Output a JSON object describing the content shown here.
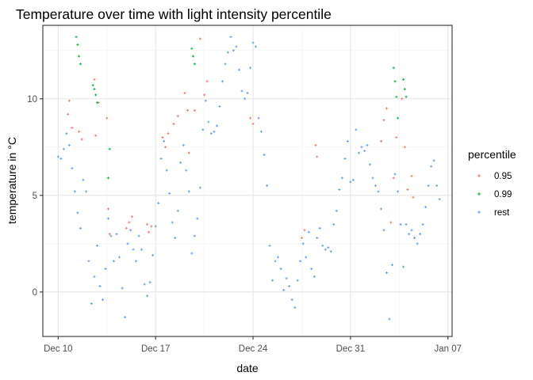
{
  "chart_data": {
    "type": "scatter",
    "title": "Temperature over time with light intensity percentile",
    "xlabel": "date",
    "ylabel": "temperature in °C",
    "x_ticks": [
      "Dec 10",
      "Dec 17",
      "Dec 24",
      "Dec 31",
      "Jan 07"
    ],
    "y_ticks": [
      "0",
      "5",
      "10"
    ],
    "xlim_days": [
      8.9,
      38.3
    ],
    "ylim": [
      -2.3,
      13.8
    ],
    "grid": true,
    "legend": {
      "title": "percentile",
      "position": "right",
      "entries": [
        "0.95",
        "0.99",
        "rest"
      ]
    },
    "colors": {
      "0.95": "#F8766D",
      "0.99": "#00BA38",
      "rest": "#619CFF"
    },
    "series": [
      {
        "name": "rest",
        "x": [
          10.0,
          10.2,
          10.4,
          10.6,
          10.8,
          11.0,
          11.2,
          11.4,
          11.6,
          11.8,
          12.0,
          12.2,
          12.4,
          12.6,
          12.8,
          13.0,
          13.2,
          13.4,
          13.6,
          13.8,
          14.0,
          14.2,
          14.4,
          14.6,
          14.8,
          15.0,
          15.2,
          15.4,
          15.6,
          15.8,
          16.0,
          16.2,
          16.4,
          16.6,
          16.8,
          17.0,
          17.2,
          17.4,
          17.6,
          17.8,
          18.0,
          18.2,
          18.4,
          18.6,
          18.8,
          19.0,
          19.2,
          19.4,
          19.6,
          19.8,
          20.0,
          20.2,
          20.4,
          20.6,
          20.8,
          21.0,
          21.2,
          21.4,
          21.6,
          21.8,
          22.0,
          22.2,
          22.4,
          22.6,
          22.8,
          23.0,
          23.2,
          23.4,
          23.6,
          23.8,
          24.0,
          24.2,
          24.4,
          24.6,
          24.8,
          25.0,
          25.2,
          25.4,
          25.6,
          25.8,
          26.0,
          26.2,
          26.4,
          26.6,
          26.8,
          27.0,
          27.2,
          27.4,
          27.6,
          27.8,
          28.0,
          28.2,
          28.4,
          28.6,
          28.8,
          29.0,
          29.2,
          29.4,
          29.6,
          29.8,
          30.0,
          30.2,
          30.4,
          30.6,
          30.8,
          31.0,
          31.2,
          31.4,
          31.6,
          31.8,
          32.0,
          32.2,
          32.4,
          32.6,
          32.8,
          33.0,
          33.2,
          33.4,
          33.6,
          33.8,
          34.0,
          34.2,
          34.4,
          34.6,
          34.8,
          35.0,
          35.2,
          35.4,
          35.6,
          35.8,
          36.0,
          36.2,
          36.4,
          36.6,
          36.8,
          37.0,
          37.2,
          37.4
        ],
        "y": [
          7.0,
          6.9,
          7.4,
          8.2,
          7.6,
          6.4,
          5.2,
          4.1,
          3.3,
          5.8,
          5.2,
          1.6,
          -0.6,
          0.8,
          2.4,
          0.3,
          -0.4,
          1.2,
          3.8,
          2.9,
          1.6,
          3.0,
          1.8,
          0.2,
          -1.3,
          2.5,
          3.2,
          2.2,
          1.6,
          2.9,
          2.2,
          0.4,
          -0.2,
          0.5,
          1.9,
          3.4,
          4.6,
          6.9,
          7.8,
          6.3,
          5.1,
          3.6,
          2.8,
          4.2,
          6.7,
          7.6,
          6.3,
          5.2,
          2.0,
          2.9,
          3.8,
          5.4,
          8.4,
          9.9,
          8.8,
          8.2,
          8.3,
          8.6,
          9.6,
          10.9,
          11.8,
          12.4,
          13.2,
          12.5,
          12.7,
          11.5,
          10.4,
          10.0,
          10.3,
          11.6,
          12.9,
          12.7,
          9.0,
          8.3,
          7.1,
          5.5,
          2.4,
          0.6,
          1.6,
          1.8,
          1.2,
          0.1,
          0.7,
          0.3,
          -0.4,
          -0.8,
          0.6,
          1.6,
          2.5,
          1.8,
          3.1,
          1.2,
          0.8,
          2.8,
          3.3,
          2.4,
          2.2,
          2.3,
          2.1,
          3.5,
          4.2,
          5.3,
          5.9,
          6.9,
          7.8,
          5.7,
          5.8,
          8.4,
          7.2,
          7.5,
          7.3,
          7.6,
          6.6,
          5.9,
          5.5,
          5.2,
          4.3,
          3.2,
          1.0,
          -1.4,
          1.4,
          6.1,
          5.2,
          3.5,
          1.3,
          3.5,
          3.0,
          3.2,
          2.8,
          2.5,
          3.0,
          3.5,
          4.4,
          5.5,
          6.5,
          6.8,
          5.5,
          4.8
        ]
      },
      {
        "name": "0.95",
        "x": [
          10.7,
          10.8,
          11.0,
          11.5,
          11.7,
          12.6,
          12.7,
          12.9,
          13.5,
          13.6,
          13.7,
          14.9,
          15.1,
          15.3,
          16.4,
          16.5,
          16.7,
          17.5,
          17.7,
          17.9,
          18.3,
          18.6,
          19.1,
          19.3,
          19.4,
          19.8,
          20.2,
          20.5,
          20.7,
          23.8,
          24.0,
          27.5,
          27.7,
          28.5,
          28.6,
          33.2,
          33.4,
          33.6,
          33.9,
          34.1,
          34.3,
          34.7,
          34.9,
          35.1,
          35.4,
          35.5
        ],
        "y": [
          9.2,
          9.9,
          8.5,
          8.3,
          7.9,
          11.0,
          8.1,
          9.8,
          9.0,
          4.3,
          3.0,
          3.3,
          3.6,
          3.9,
          3.5,
          3.1,
          3.4,
          8.0,
          7.5,
          8.2,
          8.7,
          9.1,
          10.3,
          9.4,
          7.2,
          9.4,
          13.1,
          10.2,
          10.9,
          9.0,
          8.7,
          2.8,
          3.2,
          7.6,
          7.0,
          7.8,
          8.9,
          9.5,
          3.6,
          5.9,
          8.0,
          10.0,
          7.5,
          5.3,
          6.0,
          4.9
        ]
      },
      {
        "name": "0.99",
        "x": [
          11.3,
          11.4,
          11.5,
          11.6,
          12.5,
          12.6,
          12.7,
          12.8,
          13.6,
          13.7,
          19.6,
          19.7,
          19.8,
          34.1,
          34.2,
          34.3,
          34.4,
          34.8,
          34.9,
          35.0
        ],
        "y": [
          13.2,
          12.8,
          12.2,
          11.8,
          10.7,
          10.5,
          10.2,
          9.8,
          5.9,
          7.4,
          12.6,
          12.2,
          11.8,
          11.6,
          10.9,
          10.1,
          9.0,
          11.0,
          10.5,
          10.1
        ]
      }
    ]
  }
}
